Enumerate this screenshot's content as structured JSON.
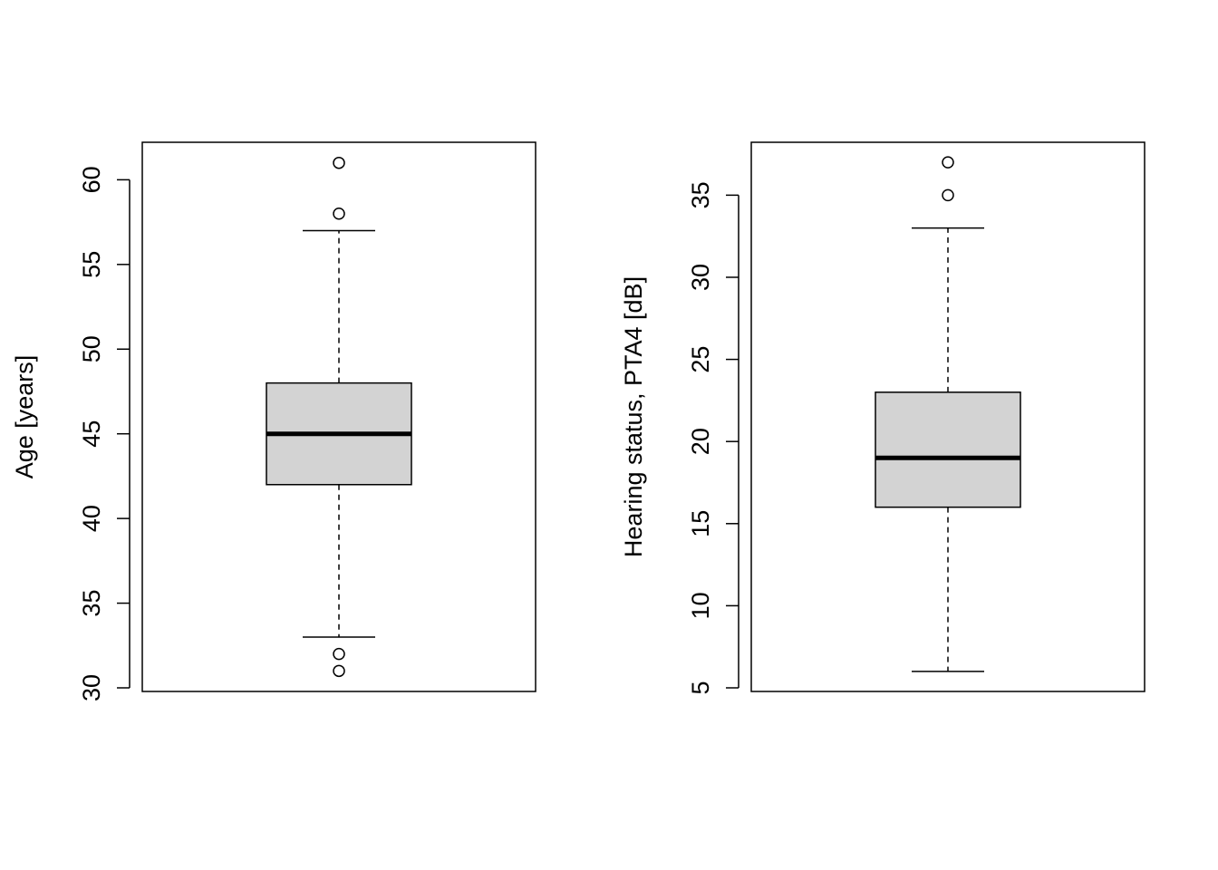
{
  "chart_data": [
    {
      "type": "boxplot",
      "ylabel": "Age [years]",
      "ylim": [
        30,
        62
      ],
      "yticks": [
        30,
        35,
        40,
        45,
        50,
        55,
        60
      ],
      "box": {
        "whisker_low": 33,
        "q1": 42,
        "median": 45,
        "q3": 48,
        "whisker_high": 57
      },
      "outliers": [
        31,
        32,
        58,
        61
      ],
      "box_color": "#d3d3d3"
    },
    {
      "type": "boxplot",
      "ylabel": "Hearing status, PTA4 [dB]",
      "ylim": [
        5,
        38
      ],
      "yticks": [
        5,
        10,
        15,
        20,
        25,
        30,
        35
      ],
      "box": {
        "whisker_low": 6,
        "q1": 16,
        "median": 19,
        "q3": 23,
        "whisker_high": 33
      },
      "outliers": [
        35,
        37
      ],
      "box_color": "#d3d3d3"
    }
  ]
}
